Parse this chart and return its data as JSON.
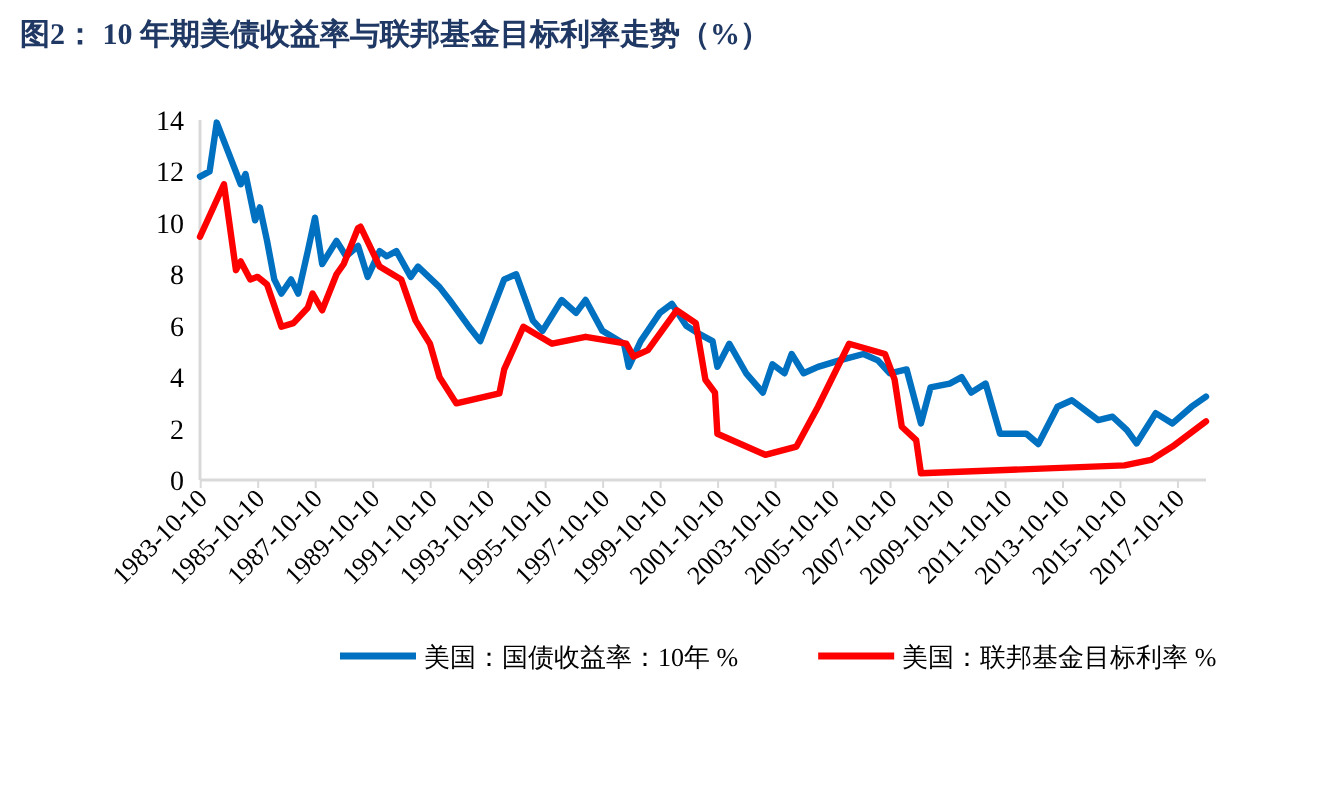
{
  "chart_data": {
    "type": "line",
    "title": "图2：  10 年期美债收益率与联邦基金目标利率走势（%）",
    "xlim": [
      "1983-10",
      "2018-10"
    ],
    "xticks": [
      "1983-10-10",
      "1985-10-10",
      "1987-10-10",
      "1989-10-10",
      "1991-10-10",
      "1993-10-10",
      "1995-10-10",
      "1997-10-10",
      "1999-10-10",
      "2001-10-10",
      "2003-10-10",
      "2005-10-10",
      "2007-10-10",
      "2009-10-10",
      "2011-10-10",
      "2013-10-10",
      "2015-10-10",
      "2017-10-10"
    ],
    "ylim": [
      0,
      14
    ],
    "yticks": [
      0,
      2,
      4,
      6,
      8,
      10,
      12,
      14
    ],
    "grid": false,
    "legend": "bottom",
    "marker": "none",
    "line_style": "solid",
    "series": [
      {
        "name": "美国：国债收益率：10年  %",
        "color": "#0070c0",
        "x": [
          "1983-10",
          "1984-02",
          "1984-05",
          "1984-10",
          "1985-03",
          "1985-05",
          "1985-09",
          "1985-11",
          "1986-02",
          "1986-05",
          "1986-08",
          "1986-12",
          "1987-03",
          "1987-07",
          "1987-10",
          "1988-01",
          "1988-07",
          "1988-11",
          "1989-04",
          "1989-08",
          "1990-01",
          "1990-04",
          "1990-08",
          "1991-02",
          "1991-05",
          "1992-02",
          "1992-07",
          "1993-02",
          "1993-07",
          "1994-05",
          "1994-10",
          "1995-05",
          "1995-09",
          "1996-05",
          "1996-11",
          "1997-03",
          "1997-10",
          "1998-07",
          "1998-09",
          "1999-02",
          "1999-10",
          "2000-03",
          "2000-09",
          "2001-02",
          "2001-08",
          "2001-10",
          "2002-03",
          "2002-10",
          "2003-05",
          "2003-09",
          "2004-02",
          "2004-05",
          "2004-10",
          "2005-04",
          "2006-01",
          "2006-11",
          "2007-05",
          "2007-10",
          "2008-05",
          "2008-11",
          "2009-03",
          "2009-11",
          "2010-04",
          "2010-08",
          "2011-02",
          "2011-08",
          "2012-07",
          "2012-12",
          "2013-08",
          "2014-02",
          "2015-01",
          "2015-07",
          "2016-01",
          "2016-05",
          "2017-01",
          "2017-08",
          "2018-04",
          "2018-10"
        ],
        "values": [
          11.8,
          12.0,
          13.9,
          12.7,
          11.5,
          11.9,
          10.1,
          10.6,
          9.3,
          7.8,
          7.25,
          7.8,
          7.25,
          8.9,
          10.2,
          8.4,
          9.3,
          8.7,
          9.1,
          7.9,
          8.9,
          8.7,
          8.9,
          7.9,
          8.3,
          7.5,
          6.9,
          6.0,
          5.4,
          7.8,
          8.0,
          6.2,
          5.8,
          7.0,
          6.5,
          7.0,
          5.8,
          5.3,
          4.4,
          5.4,
          6.5,
          6.85,
          6.0,
          5.7,
          5.4,
          4.4,
          5.3,
          4.15,
          3.4,
          4.5,
          4.15,
          4.9,
          4.15,
          4.4,
          4.65,
          4.9,
          4.65,
          4.15,
          4.3,
          2.2,
          3.6,
          3.75,
          4.0,
          3.4,
          3.75,
          1.8,
          1.8,
          1.4,
          2.85,
          3.1,
          2.33,
          2.46,
          1.94,
          1.42,
          2.6,
          2.2,
          2.85,
          3.24
        ]
      },
      {
        "name": "美国：联邦基金目标利率  %",
        "color": "#ff0000",
        "x": [
          "1983-10",
          "1984-08",
          "1985-01",
          "1985-03",
          "1985-07",
          "1985-10",
          "1986-02",
          "1986-08",
          "1987-01",
          "1987-07",
          "1987-09",
          "1988-01",
          "1988-07",
          "1988-10",
          "1989-04",
          "1989-05",
          "1990-01",
          "1990-10",
          "1991-04",
          "1991-10",
          "1992-02",
          "1992-09",
          "1994-03",
          "1994-05",
          "1995-01",
          "1996-01",
          "1997-03",
          "1998-08",
          "1998-11",
          "1999-05",
          "2000-05",
          "2001-01",
          "2001-05",
          "2001-09",
          "2001-10",
          "2003-06",
          "2004-07",
          "2005-04",
          "2006-05",
          "2007-08",
          "2007-12",
          "2008-03",
          "2008-09",
          "2008-11",
          "2015-12",
          "2016-11",
          "2017-08",
          "2018-10"
        ],
        "values": [
          9.46,
          11.5,
          8.16,
          8.5,
          7.8,
          7.9,
          7.6,
          5.96,
          6.1,
          6.7,
          7.25,
          6.6,
          8.0,
          8.4,
          9.8,
          9.85,
          8.3,
          7.8,
          6.2,
          5.3,
          4.0,
          2.98,
          3.37,
          4.3,
          5.96,
          5.3,
          5.57,
          5.3,
          4.8,
          5.05,
          6.6,
          6.1,
          3.9,
          3.4,
          1.8,
          0.98,
          1.3,
          2.85,
          5.3,
          4.9,
          3.9,
          2.07,
          1.55,
          0.26,
          0.57,
          0.78,
          1.3,
          2.28
        ]
      }
    ]
  }
}
